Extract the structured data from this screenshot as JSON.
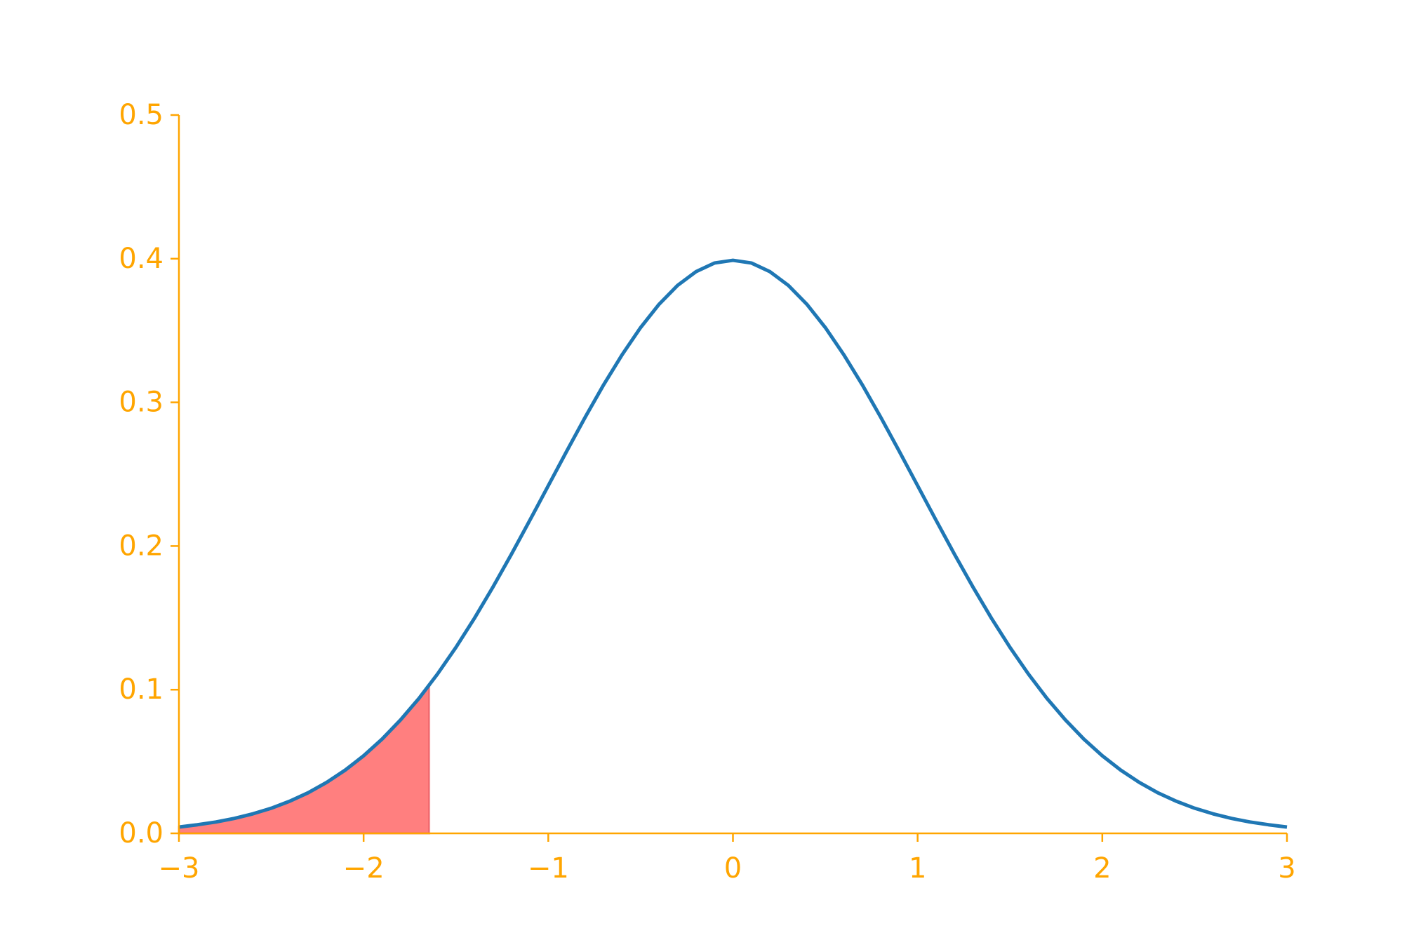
{
  "chart_data": {
    "type": "line",
    "x": [
      -3.0,
      -2.9,
      -2.8,
      -2.7,
      -2.6,
      -2.5,
      -2.4,
      -2.3,
      -2.2,
      -2.1,
      -2.0,
      -1.9,
      -1.8,
      -1.7,
      -1.6,
      -1.5,
      -1.4,
      -1.3,
      -1.2,
      -1.1,
      -1.0,
      -0.9,
      -0.8,
      -0.7,
      -0.6,
      -0.5,
      -0.4,
      -0.3,
      -0.2,
      -0.1,
      0.0,
      0.1,
      0.2,
      0.3,
      0.4,
      0.5,
      0.6,
      0.7,
      0.8,
      0.9,
      1.0,
      1.1,
      1.2,
      1.3,
      1.4,
      1.5,
      1.6,
      1.7,
      1.8,
      1.9,
      2.0,
      2.1,
      2.2,
      2.3,
      2.4,
      2.5,
      2.6,
      2.7,
      2.8,
      2.9,
      3.0
    ],
    "series": [
      {
        "color": "#1f77b4",
        "values": [
          0.0044,
          0.006,
          0.0079,
          0.0104,
          0.0136,
          0.0175,
          0.0224,
          0.0283,
          0.0355,
          0.044,
          0.054,
          0.0656,
          0.079,
          0.094,
          0.1109,
          0.1295,
          0.1497,
          0.1714,
          0.1942,
          0.2179,
          0.242,
          0.2661,
          0.2897,
          0.3123,
          0.3332,
          0.3521,
          0.3683,
          0.3814,
          0.391,
          0.397,
          0.3989,
          0.397,
          0.391,
          0.3814,
          0.3683,
          0.3521,
          0.3332,
          0.3123,
          0.2897,
          0.2661,
          0.242,
          0.2179,
          0.1942,
          0.1714,
          0.1497,
          0.1295,
          0.1109,
          0.094,
          0.079,
          0.0656,
          0.054,
          0.044,
          0.0355,
          0.0283,
          0.0224,
          0.0175,
          0.0136,
          0.0104,
          0.0079,
          0.006,
          0.0044
        ]
      }
    ],
    "area": {
      "color": "#ff7f7f",
      "x": [
        -3.0,
        -2.9,
        -2.8,
        -2.7,
        -2.6,
        -2.5,
        -2.4,
        -2.3,
        -2.2,
        -2.1,
        -2.0,
        -1.9,
        -1.8,
        -1.7,
        -1.645
      ],
      "values": [
        0.0044,
        0.006,
        0.0079,
        0.0104,
        0.0136,
        0.0175,
        0.0224,
        0.0283,
        0.0355,
        0.044,
        0.054,
        0.0656,
        0.079,
        0.094,
        0.1031
      ]
    },
    "xlim": [
      -3,
      3
    ],
    "xticks": [
      {
        "value": -3,
        "label": "−3"
      },
      {
        "value": -2,
        "label": "−2"
      },
      {
        "value": -1,
        "label": "−1"
      },
      0,
      1,
      2,
      3
    ],
    "ylim": [
      0,
      0.5
    ],
    "yticks": [
      {
        "value": 0,
        "label": "0.0"
      },
      0.1,
      0.2,
      0.3,
      0.4,
      0.5
    ],
    "axis_color": "#ffa500"
  }
}
